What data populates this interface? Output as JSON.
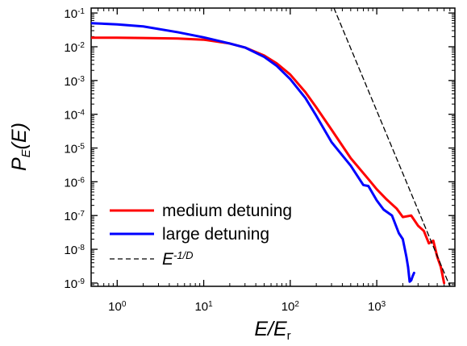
{
  "chart_data": {
    "type": "line",
    "title": "",
    "xlabel": {
      "main": "E/E",
      "sub": "r"
    },
    "ylabel": {
      "main": "P",
      "sub": "E",
      "tail": "(E)"
    },
    "x_scale": "log",
    "y_scale": "log",
    "xlim": [
      0.5,
      8000
    ],
    "ylim": [
      8e-10,
      0.14
    ],
    "grid": false,
    "legend_placement": "bottom-left",
    "x_ticks": [
      {
        "value": 1,
        "base": "10",
        "exp": "0"
      },
      {
        "value": 10,
        "base": "10",
        "exp": "1"
      },
      {
        "value": 100,
        "base": "10",
        "exp": "2"
      },
      {
        "value": 1000,
        "base": "10",
        "exp": "3"
      }
    ],
    "y_ticks": [
      {
        "value": 1e-09,
        "base": "10",
        "exp": "-9"
      },
      {
        "value": 1e-08,
        "base": "10",
        "exp": "-8"
      },
      {
        "value": 1e-07,
        "base": "10",
        "exp": "-7"
      },
      {
        "value": 1e-06,
        "base": "10",
        "exp": "-6"
      },
      {
        "value": 1e-05,
        "base": "10",
        "exp": "-5"
      },
      {
        "value": 0.0001,
        "base": "10",
        "exp": "-4"
      },
      {
        "value": 0.001,
        "base": "10",
        "exp": "-3"
      },
      {
        "value": 0.01,
        "base": "10",
        "exp": "-2"
      },
      {
        "value": 0.1,
        "base": "10",
        "exp": "-1"
      }
    ],
    "series": [
      {
        "name": "medium detuning",
        "color": "#ff0000",
        "style": "solid",
        "x": [
          0.5,
          1,
          2,
          5,
          10,
          20,
          30,
          50,
          70,
          100,
          150,
          200,
          300,
          500,
          800,
          1000,
          1300,
          1700,
          2000,
          2500,
          3000,
          3500,
          4000,
          4500,
          5000,
          5500,
          6000
        ],
        "y": [
          0.0185,
          0.0185,
          0.0182,
          0.0175,
          0.0162,
          0.0125,
          0.0095,
          0.0055,
          0.0032,
          0.0015,
          0.00045,
          0.00016,
          3.5e-05,
          5e-06,
          1.2e-06,
          6e-07,
          3e-07,
          1.6e-07,
          9e-08,
          1e-07,
          5e-08,
          3.5e-08,
          1.5e-08,
          1.8e-08,
          6e-09,
          3e-09,
          1e-09
        ]
      },
      {
        "name": "large detuning",
        "color": "#0000ff",
        "style": "solid",
        "x": [
          0.5,
          1,
          2,
          5,
          10,
          20,
          30,
          50,
          70,
          100,
          150,
          200,
          300,
          500,
          700,
          800,
          1000,
          1200,
          1500,
          1800,
          2000,
          2200,
          2300,
          2400,
          2500,
          2600,
          2700
        ],
        "y": [
          0.05,
          0.046,
          0.04,
          0.027,
          0.019,
          0.0125,
          0.0095,
          0.005,
          0.0027,
          0.0011,
          0.0003,
          9e-05,
          1.5e-05,
          3e-06,
          8e-07,
          7.5e-07,
          2.8e-07,
          1.5e-07,
          1e-07,
          3e-08,
          2e-08,
          6e-09,
          3e-09,
          1.1e-09,
          1.2e-09,
          1.6e-09,
          2e-09
        ]
      },
      {
        "name_main": "E",
        "name_sup": "-1/D",
        "color": "#000000",
        "style": "dashed",
        "x": [
          320,
          7000
        ],
        "y": [
          0.14,
          8e-10
        ]
      }
    ]
  }
}
